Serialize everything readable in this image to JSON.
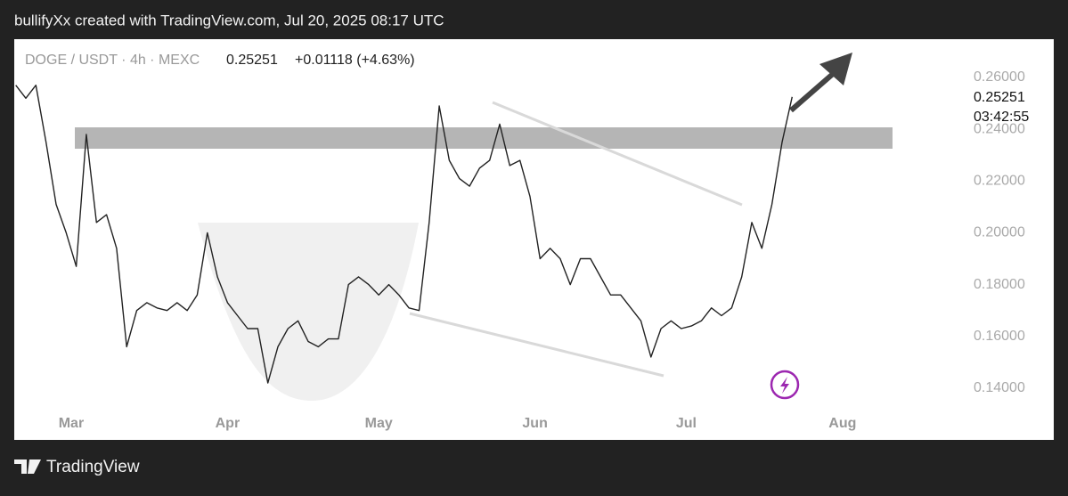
{
  "header": "bullifyXx created with TradingView.com, Jul 20, 2025 08:17 UTC",
  "footer": "TradingView",
  "chart_data": {
    "type": "line",
    "symbol": "DOGE / USDT · 4h · MEXC",
    "last_price": 0.25251,
    "change": "+0.01118 (+4.63%)",
    "countdown": "03:42:55",
    "x": [
      49,
      51,
      53,
      55,
      57,
      59,
      61,
      63,
      65,
      67,
      69,
      71,
      73,
      75,
      77,
      79,
      81,
      83,
      85,
      87,
      89,
      91,
      93,
      95,
      97,
      99,
      101,
      103,
      105,
      107,
      109,
      111,
      113,
      115,
      117,
      119,
      121,
      123,
      125,
      127,
      129,
      131,
      133,
      135,
      137,
      139,
      141,
      143,
      145,
      147,
      149,
      151,
      153,
      155,
      157,
      159,
      161,
      163,
      165,
      167,
      169,
      171,
      173,
      175,
      177,
      179,
      181,
      183,
      185,
      187,
      189,
      191,
      193,
      195,
      197,
      199,
      201,
      203
    ],
    "series": [
      {
        "name": "DOGE / USDT",
        "color": "#222222",
        "values": [
          0.257,
          0.252,
          0.257,
          0.235,
          0.211,
          0.2,
          0.187,
          0.238,
          0.204,
          0.207,
          0.194,
          0.156,
          0.17,
          0.173,
          0.171,
          0.17,
          0.173,
          0.17,
          0.176,
          0.2,
          0.183,
          0.173,
          0.168,
          0.163,
          0.163,
          0.142,
          0.156,
          0.163,
          0.166,
          0.158,
          0.156,
          0.159,
          0.159,
          0.18,
          0.183,
          0.18,
          0.176,
          0.18,
          0.176,
          0.171,
          0.17,
          0.204,
          0.249,
          0.228,
          0.221,
          0.218,
          0.225,
          0.228,
          0.242,
          0.226,
          0.228,
          0.214,
          0.19,
          0.194,
          0.19,
          0.18,
          0.19,
          0.19,
          0.183,
          0.176,
          0.176,
          0.171,
          0.166,
          0.152,
          0.163,
          0.166,
          0.163,
          0.164,
          0.166,
          0.171,
          0.168,
          0.171,
          0.183,
          0.204,
          0.194,
          0.211,
          0.235,
          0.25251
        ]
      }
    ],
    "xlim": [
      48.7,
      254.9
    ],
    "xticks": [
      {
        "value": 60,
        "label": "Mar"
      },
      {
        "value": 91,
        "label": "Apr"
      },
      {
        "value": 121,
        "label": "May"
      },
      {
        "value": 152,
        "label": "Jun"
      },
      {
        "value": 182,
        "label": "Jul"
      },
      {
        "value": 213,
        "label": "Aug"
      }
    ],
    "ylim": [
      0.1317,
      0.2748
    ],
    "yticks": [
      {
        "value": 0.14,
        "label": "0.14000"
      },
      {
        "value": 0.16,
        "label": "0.16000"
      },
      {
        "value": 0.18,
        "label": "0.18000"
      },
      {
        "value": 0.2,
        "label": "0.20000"
      },
      {
        "value": 0.22,
        "label": "0.22000"
      },
      {
        "value": 0.24,
        "label": "0.24000"
      },
      {
        "value": 0.26,
        "label": "0.26000"
      }
    ]
  }
}
